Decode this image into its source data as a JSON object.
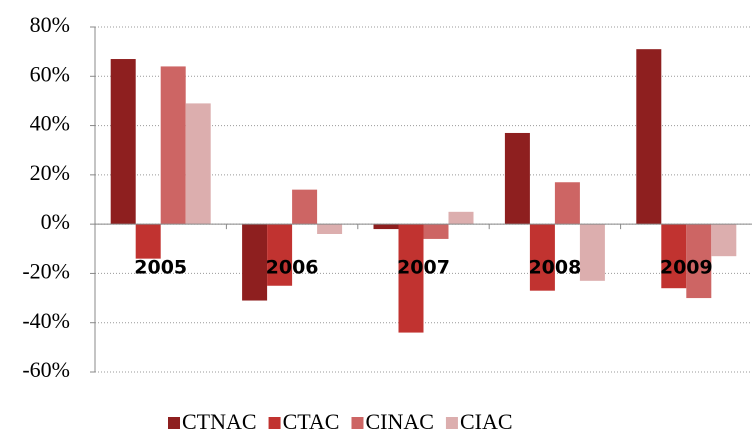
{
  "chart_data": {
    "type": "bar",
    "categories": [
      "2005",
      "2006",
      "2007",
      "2008",
      "2009"
    ],
    "series": [
      {
        "name": "CTNAC",
        "color": "#8e1f1f",
        "values": [
          67,
          -31,
          -2,
          37,
          71
        ]
      },
      {
        "name": "CTAC",
        "color": "#c13330",
        "values": [
          -14,
          -25,
          -44,
          -27,
          -26
        ]
      },
      {
        "name": "CINAC",
        "color": "#cd6564",
        "values": [
          64,
          14,
          -6,
          17,
          -30
        ]
      },
      {
        "name": "CIAC",
        "color": "#dcaeae",
        "values": [
          49,
          -4,
          5,
          -23,
          -13
        ]
      }
    ],
    "ylim": [
      -60,
      80
    ],
    "yticks": [
      {
        "value": -60,
        "label": "-60%"
      },
      {
        "value": -40,
        "label": "-40%"
      },
      {
        "value": -20,
        "label": "-20%"
      },
      {
        "value": 0,
        "label": "0%"
      },
      {
        "value": 20,
        "label": "20%"
      },
      {
        "value": 40,
        "label": "40%"
      },
      {
        "value": 60,
        "label": "60%"
      },
      {
        "value": 80,
        "label": "80%"
      }
    ],
    "grid": true
  }
}
